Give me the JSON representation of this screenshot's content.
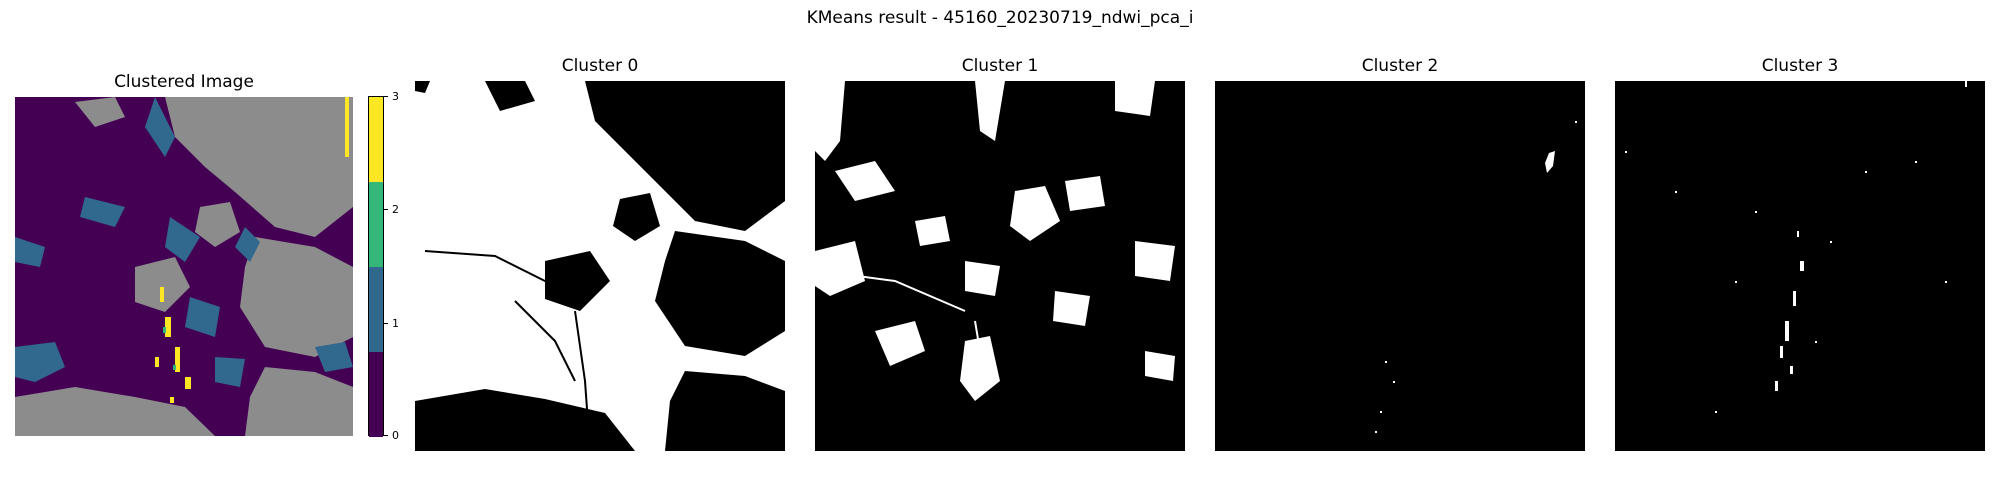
{
  "figure": {
    "suptitle": "KMeans result - 45160_20230719_ndwi_pca_i"
  },
  "panels": {
    "clustered": {
      "title": "Clustered Image"
    },
    "cluster0": {
      "title": "Cluster 0"
    },
    "cluster1": {
      "title": "Cluster 1"
    },
    "cluster2": {
      "title": "Cluster 2"
    },
    "cluster3": {
      "title": "Cluster 3"
    }
  },
  "colorbar": {
    "ticks": [
      "0",
      "1",
      "2",
      "3"
    ],
    "colors": [
      "#440154",
      "#31688e",
      "#35b779",
      "#fde725"
    ]
  },
  "colors": {
    "gray_cloud": "#8c8c8c"
  }
}
